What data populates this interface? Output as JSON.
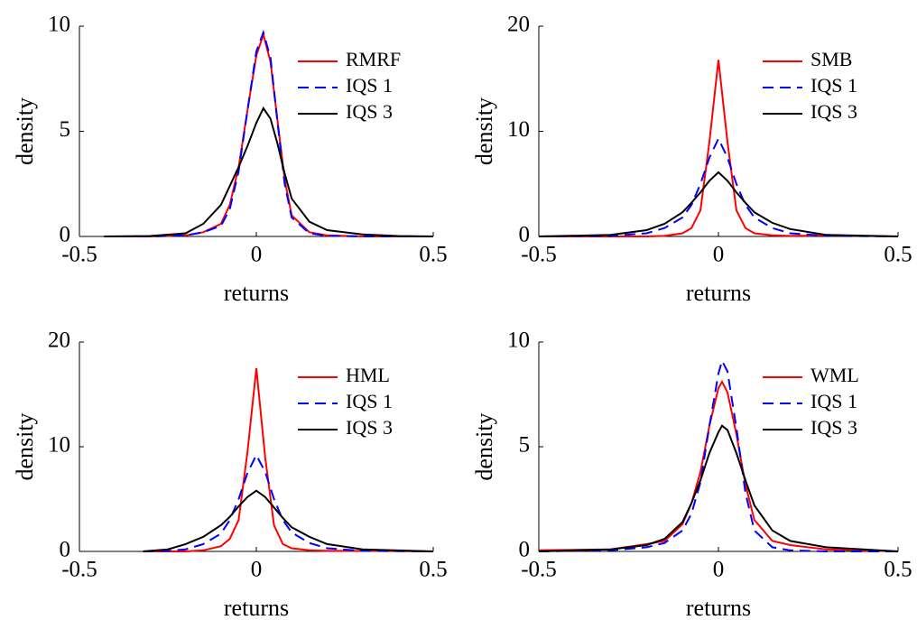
{
  "chart_data": [
    {
      "type": "line",
      "xlabel": "returns",
      "ylabel": "density",
      "xlim": [
        -0.5,
        0.5
      ],
      "ylim": [
        0,
        10
      ],
      "xticks": [
        -0.5,
        0,
        0.5
      ],
      "yticks": [
        0,
        5,
        10
      ],
      "legend": "upper right",
      "x": [
        -0.43,
        -0.3,
        -0.2,
        -0.15,
        -0.1,
        -0.075,
        -0.05,
        -0.025,
        0,
        0.02,
        0.04,
        0.06,
        0.08,
        0.1,
        0.15,
        0.2,
        0.3,
        0.4,
        0.5
      ],
      "series": [
        {
          "name": "RMRF",
          "color": "#ff0000",
          "line_style": "solid",
          "values": [
            0,
            0,
            0.05,
            0.2,
            0.6,
            1.5,
            3.3,
            6.0,
            8.6,
            9.6,
            8.3,
            5.5,
            2.7,
            1.0,
            0.2,
            0.05,
            0,
            0,
            0
          ]
        },
        {
          "name": "IQS 1",
          "color": "#0000ff",
          "line_style": "dashed",
          "values": [
            0,
            0,
            0.05,
            0.2,
            0.5,
            1.3,
            3.1,
            6.0,
            8.8,
            9.7,
            8.5,
            5.4,
            2.5,
            0.9,
            0.15,
            0.03,
            0,
            0,
            0
          ]
        },
        {
          "name": "IQS 3",
          "color": "#000000",
          "line_style": "solid",
          "values": [
            0,
            0.02,
            0.15,
            0.6,
            1.5,
            2.4,
            3.3,
            4.3,
            5.4,
            6.1,
            5.6,
            4.4,
            3.0,
            1.8,
            0.7,
            0.3,
            0.1,
            0.02,
            0
          ]
        }
      ]
    },
    {
      "type": "line",
      "xlabel": "returns",
      "ylabel": "density",
      "xlim": [
        -0.5,
        0.5
      ],
      "ylim": [
        0,
        20
      ],
      "xticks": [
        -0.5,
        0,
        0.5
      ],
      "yticks": [
        0,
        10,
        20
      ],
      "legend": "upper right",
      "x": [
        -0.5,
        -0.3,
        -0.2,
        -0.15,
        -0.1,
        -0.075,
        -0.05,
        -0.025,
        0,
        0.025,
        0.05,
        0.075,
        0.1,
        0.15,
        0.2,
        0.3,
        0.5
      ],
      "series": [
        {
          "name": "SMB",
          "color": "#ff0000",
          "line_style": "solid",
          "values": [
            0,
            0,
            0,
            0.05,
            0.3,
            0.8,
            2.5,
            9,
            16.8,
            9,
            2.5,
            0.8,
            0.3,
            0.1,
            0.05,
            0.1,
            0
          ]
        },
        {
          "name": "IQS 1",
          "color": "#0000ff",
          "line_style": "dashed",
          "values": [
            0,
            0.05,
            0.3,
            0.8,
            1.8,
            3,
            5,
            7.5,
            9.3,
            7.5,
            5,
            3,
            1.8,
            0.8,
            0.3,
            0.05,
            0
          ]
        },
        {
          "name": "IQS 3",
          "color": "#000000",
          "line_style": "solid",
          "values": [
            0,
            0.15,
            0.6,
            1.2,
            2.3,
            3.2,
            4.2,
            5.3,
            6.1,
            5.3,
            4.2,
            3.2,
            2.3,
            1.3,
            0.7,
            0.15,
            0
          ]
        }
      ]
    },
    {
      "type": "line",
      "xlabel": "returns",
      "ylabel": "density",
      "xlim": [
        -0.5,
        0.5
      ],
      "ylim": [
        0,
        20
      ],
      "xticks": [
        -0.5,
        0,
        0.5
      ],
      "yticks": [
        0,
        10,
        20
      ],
      "legend": "upper right",
      "x": [
        -0.32,
        -0.25,
        -0.2,
        -0.15,
        -0.1,
        -0.075,
        -0.05,
        -0.025,
        0,
        0.025,
        0.05,
        0.075,
        0.1,
        0.15,
        0.2,
        0.3,
        0.5
      ],
      "series": [
        {
          "name": "HML",
          "color": "#ff0000",
          "line_style": "solid",
          "values": [
            0,
            0,
            0,
            0.1,
            0.5,
            1.2,
            3,
            9.5,
            17.5,
            9,
            2.5,
            0.7,
            0.3,
            0.1,
            0.05,
            0.05,
            0
          ]
        },
        {
          "name": "IQS 1",
          "color": "#0000ff",
          "line_style": "dashed",
          "values": [
            0,
            0.05,
            0.2,
            0.7,
            1.7,
            3,
            5,
            7.5,
            9.2,
            7.6,
            5,
            3,
            1.8,
            0.8,
            0.3,
            0.05,
            0
          ]
        },
        {
          "name": "IQS 3",
          "color": "#000000",
          "line_style": "solid",
          "values": [
            0,
            0.2,
            0.7,
            1.4,
            2.5,
            3.3,
            4.3,
            5.2,
            5.8,
            5.2,
            4.2,
            3.2,
            2.3,
            1.4,
            0.7,
            0.2,
            0
          ]
        }
      ]
    },
    {
      "type": "line",
      "xlabel": "returns",
      "ylabel": "density",
      "xlim": [
        -0.5,
        0.5
      ],
      "ylim": [
        0,
        10
      ],
      "xticks": [
        -0.5,
        0,
        0.5
      ],
      "yticks": [
        0,
        5,
        10
      ],
      "legend": "upper right",
      "x": [
        -0.5,
        -0.3,
        -0.2,
        -0.15,
        -0.1,
        -0.075,
        -0.05,
        -0.025,
        0,
        0.01,
        0.025,
        0.05,
        0.075,
        0.1,
        0.15,
        0.2,
        0.3,
        0.5
      ],
      "series": [
        {
          "name": "WML",
          "color": "#ff0000",
          "line_style": "solid",
          "values": [
            0.05,
            0.1,
            0.35,
            0.5,
            1.3,
            2.3,
            3.8,
            6.0,
            7.8,
            8.1,
            7.6,
            5.6,
            3.2,
            1.5,
            0.5,
            0.3,
            0.1,
            0
          ]
        },
        {
          "name": "IQS 1",
          "color": "#0000ff",
          "line_style": "dashed",
          "values": [
            0,
            0.05,
            0.2,
            0.4,
            1.0,
            1.8,
            3.3,
            6.0,
            8.5,
            9.1,
            8.6,
            5.9,
            2.8,
            1.0,
            0.2,
            0.05,
            0,
            0
          ]
        },
        {
          "name": "IQS 3",
          "color": "#000000",
          "line_style": "solid",
          "values": [
            0,
            0.1,
            0.3,
            0.6,
            1.4,
            2.3,
            3.4,
            4.7,
            5.7,
            6.0,
            5.8,
            4.7,
            3.4,
            2.2,
            1.0,
            0.5,
            0.2,
            0
          ]
        }
      ]
    }
  ]
}
